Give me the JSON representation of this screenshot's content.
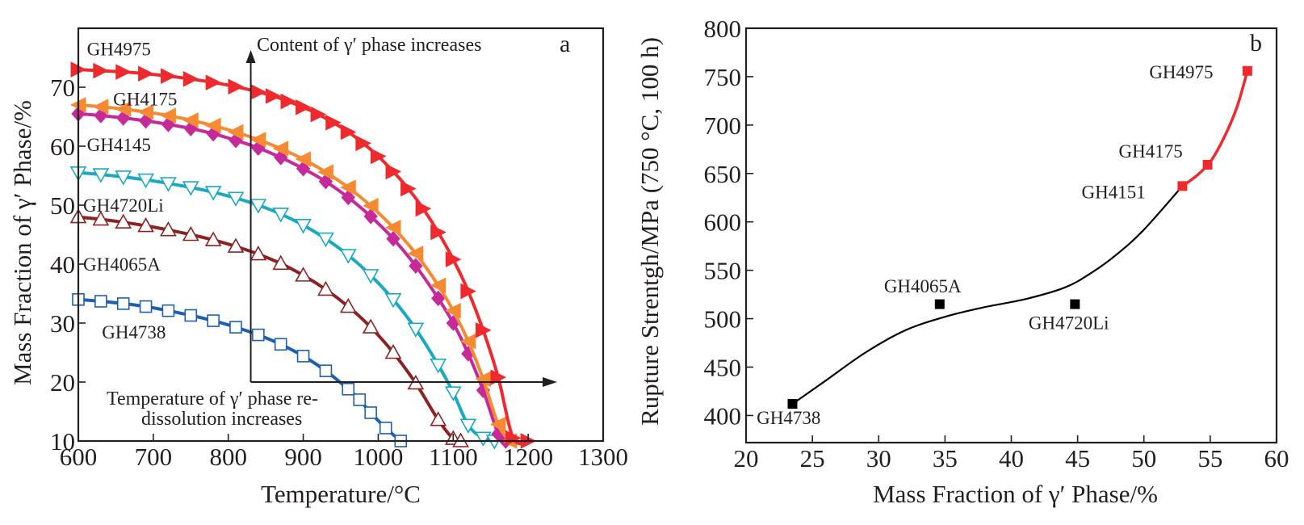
{
  "chart_data": [
    {
      "type": "line",
      "panel": "a",
      "title": "",
      "xlabel": "Temperature/°C",
      "ylabel": "Mass Fraction of γ′ Phase/%",
      "xlim": [
        600,
        1300
      ],
      "ylim": [
        10,
        80
      ],
      "xticks": [
        600,
        700,
        800,
        900,
        1000,
        1100,
        1200,
        1300
      ],
      "yticks": [
        10,
        20,
        30,
        40,
        50,
        60,
        70
      ],
      "grid": false,
      "legend": "inline labels at left",
      "annotations": {
        "vertical_arrow": "Content of γ′ phase increases",
        "horizontal_arrow_line1": "Temperature of γ′ phase re-",
        "horizontal_arrow_line2": "dissolution increases",
        "arrow_origin": {
          "x": 830,
          "y": 20
        }
      },
      "series": [
        {
          "name": "GH4975",
          "color": "#ee2a2e",
          "marker": "triangle-right-filled",
          "x": [
            600,
            630,
            660,
            690,
            720,
            750,
            780,
            810,
            840,
            860,
            880,
            900,
            920,
            940,
            960,
            980,
            1000,
            1020,
            1040,
            1060,
            1080,
            1100,
            1120,
            1140,
            1160,
            1180,
            1200
          ],
          "y": [
            73,
            72.8,
            72.6,
            72.3,
            71.9,
            71.4,
            70.8,
            70.1,
            69.2,
            68.5,
            67.6,
            66.6,
            65.4,
            64.0,
            62.4,
            60.5,
            58.3,
            55.7,
            52.8,
            49.4,
            45.4,
            40.8,
            35.4,
            28.8,
            20.8,
            10.5,
            10
          ]
        },
        {
          "name": "GH4175",
          "color": "#f58a32",
          "marker": "triangle-left-filled",
          "x": [
            600,
            630,
            660,
            690,
            720,
            750,
            780,
            810,
            840,
            870,
            900,
            930,
            960,
            990,
            1020,
            1050,
            1080,
            1100,
            1120,
            1140,
            1160,
            1175
          ],
          "y": [
            67,
            66.7,
            66.3,
            65.8,
            65.2,
            64.4,
            63.5,
            62.4,
            61.1,
            59.6,
            57.8,
            55.6,
            53.0,
            49.9,
            46.2,
            41.8,
            36.4,
            32.1,
            26.9,
            20.5,
            12.8,
            10
          ]
        },
        {
          "name": "GH4145",
          "color": "#c62a9a",
          "marker": "diamond-filled",
          "x": [
            600,
            630,
            660,
            690,
            720,
            750,
            780,
            810,
            840,
            870,
            900,
            930,
            960,
            990,
            1020,
            1050,
            1080,
            1100,
            1120,
            1140,
            1160,
            1170
          ],
          "y": [
            65.5,
            65.2,
            64.8,
            64.3,
            63.7,
            63.0,
            62.1,
            61.0,
            59.7,
            58.1,
            56.2,
            54.0,
            51.3,
            48.1,
            44.3,
            39.7,
            34.2,
            30.0,
            24.8,
            18.6,
            11.2,
            10
          ]
        },
        {
          "name": "GH4720Li",
          "color": "#1aa9bf",
          "marker": "triangle-down-open",
          "x": [
            600,
            630,
            660,
            690,
            720,
            750,
            780,
            810,
            840,
            870,
            900,
            930,
            960,
            990,
            1020,
            1050,
            1080,
            1100,
            1120,
            1140,
            1155
          ],
          "y": [
            55.5,
            55.2,
            54.8,
            54.3,
            53.7,
            53.0,
            52.2,
            51.2,
            50.0,
            48.5,
            46.6,
            44.3,
            41.5,
            38.1,
            34.0,
            29.0,
            22.9,
            18.2,
            12.7,
            10.5,
            10
          ]
        },
        {
          "name": "GH4065A",
          "color": "#8b2323",
          "marker": "triangle-up-open",
          "x": [
            600,
            630,
            660,
            690,
            720,
            750,
            780,
            810,
            840,
            870,
            900,
            930,
            960,
            990,
            1020,
            1050,
            1080,
            1100,
            1110
          ],
          "y": [
            48,
            47.6,
            47.1,
            46.5,
            45.8,
            45.0,
            44.1,
            43.0,
            41.7,
            40.1,
            38.1,
            35.7,
            32.8,
            29.3,
            25.0,
            19.8,
            13.6,
            10.4,
            10
          ]
        },
        {
          "name": "GH4738",
          "color": "#1f5fb0",
          "marker": "square-open",
          "x": [
            600,
            630,
            660,
            690,
            720,
            750,
            780,
            810,
            840,
            870,
            900,
            930,
            960,
            975,
            990,
            1010,
            1030
          ],
          "y": [
            34,
            33.7,
            33.3,
            32.8,
            32.1,
            31.3,
            30.4,
            29.3,
            28.0,
            26.4,
            24.4,
            21.9,
            18.8,
            17.0,
            14.8,
            12.2,
            10
          ]
        }
      ],
      "label_positions": {
        "GH4975": [
          605,
          76.5
        ],
        "GH4175": [
          640,
          68.0
        ],
        "GH4145": [
          605,
          60.3
        ],
        "GH4720Li": [
          600,
          50.0
        ],
        "GH4065A": [
          600,
          40.0
        ],
        "GH4738": [
          625,
          28.5
        ]
      }
    },
    {
      "type": "scatter",
      "panel": "b",
      "title": "",
      "xlabel": "Mass Fraction of γ′ Phase/%",
      "ylabel": "Rupture Strentgh/MPa (750 °C, 100 h)",
      "xlim": [
        20,
        60
      ],
      "ylim": [
        372,
        800
      ],
      "xticks": [
        20,
        25,
        30,
        35,
        40,
        45,
        50,
        55,
        60
      ],
      "yticks": [
        400,
        450,
        500,
        550,
        600,
        650,
        700,
        750,
        800
      ],
      "grid": false,
      "points": [
        {
          "name": "GH4738",
          "x": 23.5,
          "y": 412,
          "color": "#000000"
        },
        {
          "name": "GH4065A",
          "x": 34.6,
          "y": 515,
          "color": "#000000"
        },
        {
          "name": "GH4720Li",
          "x": 44.8,
          "y": 515,
          "color": "#000000"
        },
        {
          "name": "GH4151",
          "x": 52.9,
          "y": 637,
          "color": "#ee2a2e"
        },
        {
          "name": "GH4175",
          "x": 54.8,
          "y": 659,
          "color": "#ee2a2e"
        },
        {
          "name": "GH4975",
          "x": 57.8,
          "y": 756,
          "color": "#ee2a2e"
        }
      ],
      "fit_black": {
        "color": "#000000",
        "x": [
          23.5,
          26,
          29,
          32,
          35,
          38,
          41,
          44,
          46,
          48,
          50,
          52.9
        ],
        "y": [
          412,
          436,
          465,
          488,
          502,
          512,
          520,
          532,
          547,
          567,
          592,
          637
        ]
      },
      "fit_red": {
        "color": "#ee2a2e",
        "x": [
          52.9,
          54,
          55,
          56,
          57,
          57.8
        ],
        "y": [
          637,
          648,
          662,
          686,
          718,
          756
        ]
      },
      "label_positions": {
        "GH4738": [
          20.8,
          398
        ],
        "GH4065A": [
          30.4,
          534
        ],
        "GH4720Li": [
          41.3,
          496
        ],
        "GH4151": [
          45.3,
          631
        ],
        "GH4175": [
          48.1,
          673
        ],
        "GH4975": [
          50.4,
          755
        ]
      }
    }
  ]
}
